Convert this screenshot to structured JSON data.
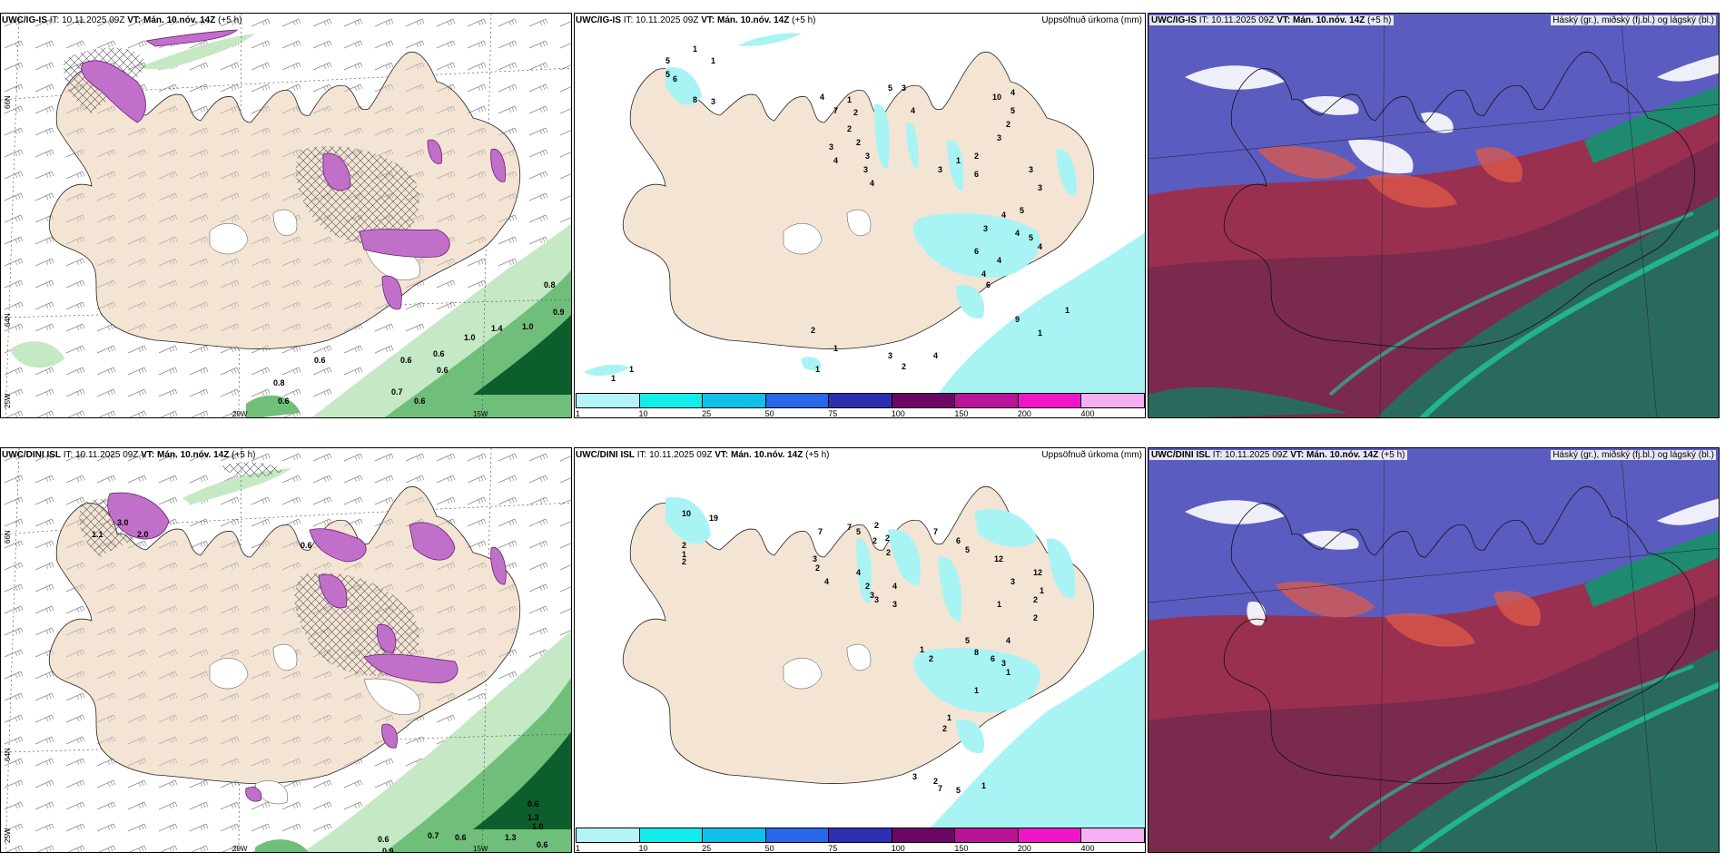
{
  "colors": {
    "land": "#f4e4d4",
    "precip_cyan": "#a8f4f4",
    "wind_green_light": "#c5e8c5",
    "wind_green_mid": "#6fbf7a",
    "wind_green_dark": "#0c5e2c",
    "icing_magenta": "#c070c8",
    "cloud_blue": "#5a5cc0",
    "cloud_red": "#9a3050",
    "cloud_teal": "#2a6a5c"
  },
  "axis_labels": {
    "lon_20w": "20W",
    "lon_15w": "15W",
    "lat_66n": "66N",
    "lat_64n": "64N",
    "lon_25w": "25W"
  },
  "panels": {
    "ig_icing": {
      "model": "UWC/IG-IS",
      "it_prefix": "IT:",
      "it": "10.11.2025 09Z",
      "vt_prefix": "VT:",
      "vt": "Mán. 10.nóv. 14Z",
      "lead": "(+5 h)",
      "contour_labels": [
        "0.8",
        "0.9",
        "1.0",
        "1.4",
        "1.0",
        "0.6",
        "0.6",
        "0.6",
        "0.8",
        "0.7",
        "0.6",
        "0.6",
        "0.6"
      ]
    },
    "ig_precip": {
      "model": "UWC/IG-IS",
      "it_prefix": "IT:",
      "it": "10.11.2025 09Z",
      "vt_prefix": "VT:",
      "vt": "Mán. 10.nóv. 14Z",
      "lead": "(+5 h)",
      "title": "Uppsöfnuð úrkoma (mm)",
      "values": [
        "1",
        "1",
        "5",
        "5",
        "6",
        "8",
        "1",
        "1",
        "3",
        "4",
        "7",
        "1",
        "2",
        "2",
        "2",
        "3",
        "4",
        "3",
        "3",
        "4",
        "5",
        "3",
        "4",
        "10",
        "4",
        "5",
        "2",
        "3",
        "2",
        "1",
        "3",
        "6",
        "3",
        "3",
        "4",
        "5",
        "3",
        "4",
        "5",
        "4",
        "6",
        "4",
        "4",
        "6",
        "2",
        "1",
        "1",
        "3",
        "2",
        "4",
        "9",
        "1",
        "1"
      ]
    },
    "ig_cloud": {
      "model": "UWC/IG-IS",
      "it_prefix": "IT:",
      "it": "10.11.2025 09Z",
      "vt_prefix": "VT:",
      "vt": "Mán. 10.nóv. 14Z",
      "lead": "(+5 h)",
      "title": "Háský (gr.), miðský (fj.bl.) og lágský (bl.)"
    },
    "dini_icing": {
      "model": "UWC/DINI ISL",
      "it_prefix": "IT:",
      "it": "10.11.2025 09Z",
      "vt_prefix": "VT:",
      "vt": "Mán. 10.nóv. 14Z",
      "lead": "(+5 h)",
      "contour_labels": [
        "3.0",
        "2.0",
        "1.1",
        "0.6",
        "0.7",
        "0.6",
        "1.3",
        "1.3",
        "1.0",
        "0.6",
        "0.6",
        "0.9",
        "0.6"
      ]
    },
    "dini_precip": {
      "model": "UWC/DINI ISL",
      "it_prefix": "IT:",
      "it": "10.11.2025 09Z",
      "vt_prefix": "VT:",
      "vt": "Mán. 10.nóv. 14Z",
      "lead": "(+5 h)",
      "title": "Uppsöfnuð úrkoma (mm)",
      "values": [
        "10",
        "19",
        "2",
        "1",
        "2",
        "7",
        "7",
        "5",
        "2",
        "2",
        "2",
        "2",
        "3",
        "2",
        "4",
        "4",
        "2",
        "3",
        "3",
        "4",
        "3",
        "7",
        "6",
        "5",
        "12",
        "12",
        "1",
        "2",
        "3",
        "1",
        "2",
        "4",
        "5",
        "8",
        "6",
        "3",
        "1",
        "1",
        "2",
        "1",
        "1",
        "2",
        "3",
        "2",
        "7",
        "5",
        "1"
      ]
    },
    "dini_cloud": {
      "model": "UWC/DINI ISL",
      "it_prefix": "IT:",
      "it": "10.11.2025 09Z",
      "vt_prefix": "VT:",
      "vt": "Mán. 10.nóv. 14Z",
      "lead": "(+5 h)",
      "title": "Háský (gr.), miðský (fj.bl.) og lágský (bl.)"
    }
  },
  "colorbar": {
    "ticks": [
      "1",
      "10",
      "25",
      "50",
      "75",
      "100",
      "150",
      "200",
      "400"
    ],
    "colors": [
      "#b4f4f8",
      "#14ecec",
      "#10c0e8",
      "#2868e8",
      "#2c30b0",
      "#6c0864",
      "#b81498",
      "#f014c8",
      "#f4b0f0"
    ]
  }
}
